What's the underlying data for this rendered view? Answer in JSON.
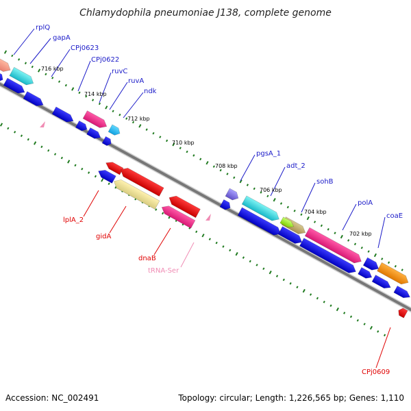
{
  "title": "Chlamydophila pneumoniae J138, complete genome",
  "footer": {
    "accession": "Accession: NC_002491",
    "summary": "Topology: circular; Length: 1,226,565 bp; Genes: 1,110"
  },
  "colors": {
    "label_top": "#1a1ac8",
    "label_bottom": "#e00000",
    "label_trna": "#f08cb4",
    "tick": "#1f7a1f",
    "backbone": "#777777"
  },
  "tick_labels": [
    "716 kbp",
    "714 kbp",
    "712 kbp",
    "710 kbp",
    "708 kbp",
    "706 kbp",
    "704 kbp",
    "702 kbp"
  ],
  "genes_top": [
    "rplQ",
    "gapA",
    "CPj0623",
    "CPj0622",
    "ruvC",
    "ruvA",
    "ndk",
    "pgsA_1",
    "adt_2",
    "sohB",
    "polA",
    "coaE"
  ],
  "genes_bottom": [
    "lplA_2",
    "gidA",
    "dnaB",
    "tRNA-Ser",
    "CPj0609"
  ]
}
